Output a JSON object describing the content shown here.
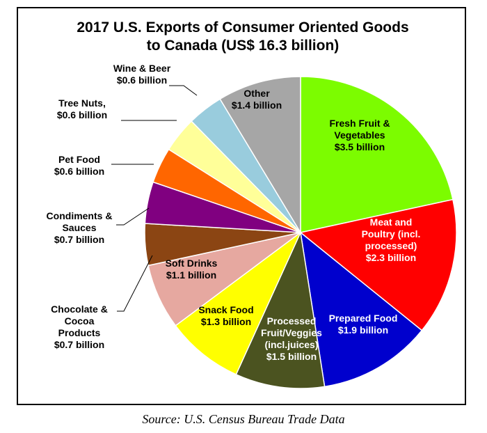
{
  "chart_data": {
    "type": "pie",
    "title": [
      "2017 U.S. Exports of Consumer Oriented Goods",
      "to Canada (US$ 16.3 billion)"
    ],
    "unit": "billion US$",
    "slices": [
      {
        "label": [
          "Fresh Fruit &",
          "Vegetables",
          "$3.5 billion"
        ],
        "value": 3.5,
        "color": "#7CFC00",
        "text_color": "#000000"
      },
      {
        "label": [
          "Meat and",
          "Poultry (incl.",
          "processed)",
          "$2.3 billion"
        ],
        "value": 2.3,
        "color": "#FF0000",
        "text_color": "#FFFFFF"
      },
      {
        "label": [
          "Prepared Food",
          "$1.9 billion"
        ],
        "value": 1.9,
        "color": "#0000CD",
        "text_color": "#FFFFFF"
      },
      {
        "label": [
          "Processed",
          "Fruit/Veggies",
          "(incl.juices)",
          "$1.5 billion"
        ],
        "value": 1.5,
        "color": "#4B5320",
        "text_color": "#FFFFFF"
      },
      {
        "label": [
          "Snack Food",
          "$1.3 billion"
        ],
        "value": 1.3,
        "color": "#FFFF00",
        "text_color": "#000000"
      },
      {
        "label": [
          "Soft Drinks",
          "$1.1 billion"
        ],
        "value": 1.1,
        "color": "#E6A8A0",
        "text_color": "#000000"
      },
      {
        "label": [
          "Chocolate &",
          "Cocoa",
          "Products",
          "$0.7 billion"
        ],
        "value": 0.7,
        "color": "#8B4513",
        "text_color": "#000000"
      },
      {
        "label": [
          "Condiments &",
          "Sauces",
          "$0.7 billion"
        ],
        "value": 0.7,
        "color": "#800080",
        "text_color": "#000000"
      },
      {
        "label": [
          "Pet Food",
          "$0.6 billion"
        ],
        "value": 0.6,
        "color": "#FF6600",
        "text_color": "#000000"
      },
      {
        "label": [
          "Tree Nuts,",
          "$0.6 billion"
        ],
        "value": 0.6,
        "color": "#FFFF99",
        "text_color": "#000000"
      },
      {
        "label": [
          "Wine & Beer",
          "$0.6 billion"
        ],
        "value": 0.6,
        "color": "#99CCDD",
        "text_color": "#000000"
      },
      {
        "label": [
          "Other",
          "$1.4 billion"
        ],
        "value": 1.4,
        "color": "#A6A6A6",
        "text_color": "#000000"
      }
    ]
  },
  "source": "Source: U.S. Census Bureau Trade Data"
}
